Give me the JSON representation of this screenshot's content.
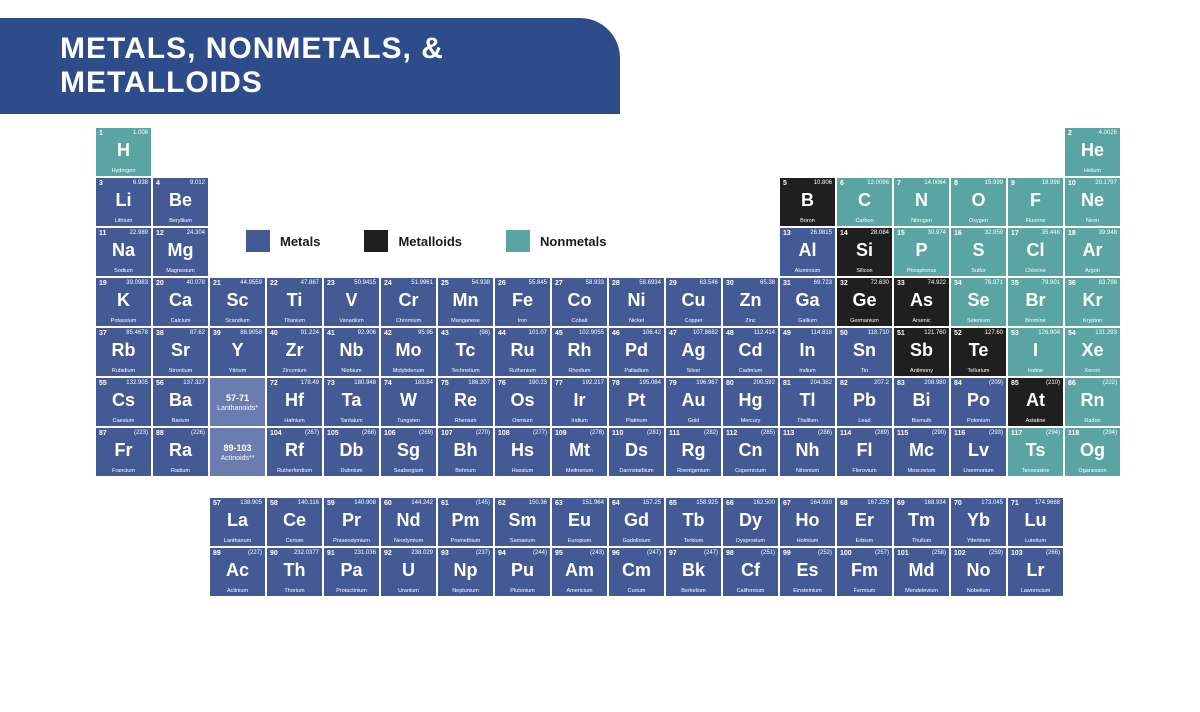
{
  "title": "METALS, NONMETALS, & METALLOIDS",
  "colors": {
    "metal": "#445a94",
    "metalloid": "#1f1f1f",
    "nonmetal": "#5ba4a4",
    "placeholder": "#6b7db0",
    "banner": "#2e4b8a",
    "background": "#ffffff"
  },
  "legend": [
    {
      "label": "Metals",
      "colorKey": "metal"
    },
    {
      "label": "Metalloids",
      "colorKey": "metalloid"
    },
    {
      "label": "Nonmetals",
      "colorKey": "nonmetal"
    }
  ],
  "placeholders": [
    {
      "row": 6,
      "col": 3,
      "range": "57-71",
      "label": "Lanthanoids*"
    },
    {
      "row": 7,
      "col": 3,
      "range": "89-103",
      "label": "Actinoids**"
    }
  ],
  "elements": [
    {
      "n": 1,
      "s": "H",
      "nm": "Hydrogen",
      "m": "1.008",
      "c": "nonmetal",
      "r": 1,
      "g": 1
    },
    {
      "n": 2,
      "s": "He",
      "nm": "Helium",
      "m": "4.0026",
      "c": "nonmetal",
      "r": 1,
      "g": 18
    },
    {
      "n": 3,
      "s": "Li",
      "nm": "Lithium",
      "m": "6.938",
      "c": "metal",
      "r": 2,
      "g": 1
    },
    {
      "n": 4,
      "s": "Be",
      "nm": "Beryllium",
      "m": "9.012",
      "c": "metal",
      "r": 2,
      "g": 2
    },
    {
      "n": 5,
      "s": "B",
      "nm": "Boron",
      "m": "10.806",
      "c": "metalloid",
      "r": 2,
      "g": 13
    },
    {
      "n": 6,
      "s": "C",
      "nm": "Carbon",
      "m": "12.0096",
      "c": "nonmetal",
      "r": 2,
      "g": 14
    },
    {
      "n": 7,
      "s": "N",
      "nm": "Nitrogen",
      "m": "14.0064",
      "c": "nonmetal",
      "r": 2,
      "g": 15
    },
    {
      "n": 8,
      "s": "O",
      "nm": "Oxygen",
      "m": "15.999",
      "c": "nonmetal",
      "r": 2,
      "g": 16
    },
    {
      "n": 9,
      "s": "F",
      "nm": "Fluorine",
      "m": "18.998",
      "c": "nonmetal",
      "r": 2,
      "g": 17
    },
    {
      "n": 10,
      "s": "Ne",
      "nm": "Neon",
      "m": "20.1797",
      "c": "nonmetal",
      "r": 2,
      "g": 18
    },
    {
      "n": 11,
      "s": "Na",
      "nm": "Sodium",
      "m": "22.989",
      "c": "metal",
      "r": 3,
      "g": 1
    },
    {
      "n": 12,
      "s": "Mg",
      "nm": "Magnesium",
      "m": "24.304",
      "c": "metal",
      "r": 3,
      "g": 2
    },
    {
      "n": 13,
      "s": "Al",
      "nm": "Aluminium",
      "m": "26.9815",
      "c": "metal",
      "r": 3,
      "g": 13
    },
    {
      "n": 14,
      "s": "Si",
      "nm": "Silicon",
      "m": "28.084",
      "c": "metalloid",
      "r": 3,
      "g": 14
    },
    {
      "n": 15,
      "s": "P",
      "nm": "Phosphorus",
      "m": "30.974",
      "c": "nonmetal",
      "r": 3,
      "g": 15
    },
    {
      "n": 16,
      "s": "S",
      "nm": "Sulfur",
      "m": "32.059",
      "c": "nonmetal",
      "r": 3,
      "g": 16
    },
    {
      "n": 17,
      "s": "Cl",
      "nm": "Chlorine",
      "m": "35.446",
      "c": "nonmetal",
      "r": 3,
      "g": 17
    },
    {
      "n": 18,
      "s": "Ar",
      "nm": "Argon",
      "m": "39.948",
      "c": "nonmetal",
      "r": 3,
      "g": 18
    },
    {
      "n": 19,
      "s": "K",
      "nm": "Potassium",
      "m": "39.0983",
      "c": "metal",
      "r": 4,
      "g": 1
    },
    {
      "n": 20,
      "s": "Ca",
      "nm": "Calcium",
      "m": "40.078",
      "c": "metal",
      "r": 4,
      "g": 2
    },
    {
      "n": 21,
      "s": "Sc",
      "nm": "Scandium",
      "m": "44.9559",
      "c": "metal",
      "r": 4,
      "g": 3
    },
    {
      "n": 22,
      "s": "Ti",
      "nm": "Titanium",
      "m": "47.867",
      "c": "metal",
      "r": 4,
      "g": 4
    },
    {
      "n": 23,
      "s": "V",
      "nm": "Vanadium",
      "m": "50.9415",
      "c": "metal",
      "r": 4,
      "g": 5
    },
    {
      "n": 24,
      "s": "Cr",
      "nm": "Chromium",
      "m": "51.9961",
      "c": "metal",
      "r": 4,
      "g": 6
    },
    {
      "n": 25,
      "s": "Mn",
      "nm": "Manganese",
      "m": "54.938",
      "c": "metal",
      "r": 4,
      "g": 7
    },
    {
      "n": 26,
      "s": "Fe",
      "nm": "Iron",
      "m": "55.845",
      "c": "metal",
      "r": 4,
      "g": 8
    },
    {
      "n": 27,
      "s": "Co",
      "nm": "Cobalt",
      "m": "58.933",
      "c": "metal",
      "r": 4,
      "g": 9
    },
    {
      "n": 28,
      "s": "Ni",
      "nm": "Nickel",
      "m": "58.6934",
      "c": "metal",
      "r": 4,
      "g": 10
    },
    {
      "n": 29,
      "s": "Cu",
      "nm": "Copper",
      "m": "63.546",
      "c": "metal",
      "r": 4,
      "g": 11
    },
    {
      "n": 30,
      "s": "Zn",
      "nm": "Zinc",
      "m": "65.38",
      "c": "metal",
      "r": 4,
      "g": 12
    },
    {
      "n": 31,
      "s": "Ga",
      "nm": "Gallium",
      "m": "69.723",
      "c": "metal",
      "r": 4,
      "g": 13
    },
    {
      "n": 32,
      "s": "Ge",
      "nm": "Germanium",
      "m": "72.630",
      "c": "metalloid",
      "r": 4,
      "g": 14
    },
    {
      "n": 33,
      "s": "As",
      "nm": "Arsenic",
      "m": "74.922",
      "c": "metalloid",
      "r": 4,
      "g": 15
    },
    {
      "n": 34,
      "s": "Se",
      "nm": "Selenium",
      "m": "78.971",
      "c": "nonmetal",
      "r": 4,
      "g": 16
    },
    {
      "n": 35,
      "s": "Br",
      "nm": "Bromine",
      "m": "79.901",
      "c": "nonmetal",
      "r": 4,
      "g": 17
    },
    {
      "n": 36,
      "s": "Kr",
      "nm": "Krypton",
      "m": "83.798",
      "c": "nonmetal",
      "r": 4,
      "g": 18
    },
    {
      "n": 37,
      "s": "Rb",
      "nm": "Rubidium",
      "m": "85.4678",
      "c": "metal",
      "r": 5,
      "g": 1
    },
    {
      "n": 38,
      "s": "Sr",
      "nm": "Strontium",
      "m": "87.62",
      "c": "metal",
      "r": 5,
      "g": 2
    },
    {
      "n": 39,
      "s": "Y",
      "nm": "Yttrium",
      "m": "88.9058",
      "c": "metal",
      "r": 5,
      "g": 3
    },
    {
      "n": 40,
      "s": "Zr",
      "nm": "Zirconium",
      "m": "91.224",
      "c": "metal",
      "r": 5,
      "g": 4
    },
    {
      "n": 41,
      "s": "Nb",
      "nm": "Niobium",
      "m": "92.906",
      "c": "metal",
      "r": 5,
      "g": 5
    },
    {
      "n": 42,
      "s": "Mo",
      "nm": "Molybdenum",
      "m": "95.95",
      "c": "metal",
      "r": 5,
      "g": 6
    },
    {
      "n": 43,
      "s": "Tc",
      "nm": "Technetium",
      "m": "(98)",
      "c": "metal",
      "r": 5,
      "g": 7
    },
    {
      "n": 44,
      "s": "Ru",
      "nm": "Ruthenium",
      "m": "101.07",
      "c": "metal",
      "r": 5,
      "g": 8
    },
    {
      "n": 45,
      "s": "Rh",
      "nm": "Rhodium",
      "m": "102.9055",
      "c": "metal",
      "r": 5,
      "g": 9
    },
    {
      "n": 46,
      "s": "Pd",
      "nm": "Palladium",
      "m": "106.42",
      "c": "metal",
      "r": 5,
      "g": 10
    },
    {
      "n": 47,
      "s": "Ag",
      "nm": "Silver",
      "m": "107.8682",
      "c": "metal",
      "r": 5,
      "g": 11
    },
    {
      "n": 48,
      "s": "Cd",
      "nm": "Cadmium",
      "m": "112.414",
      "c": "metal",
      "r": 5,
      "g": 12
    },
    {
      "n": 49,
      "s": "In",
      "nm": "Indium",
      "m": "114.818",
      "c": "metal",
      "r": 5,
      "g": 13
    },
    {
      "n": 50,
      "s": "Sn",
      "nm": "Tin",
      "m": "118.710",
      "c": "metal",
      "r": 5,
      "g": 14
    },
    {
      "n": 51,
      "s": "Sb",
      "nm": "Antimony",
      "m": "121.760",
      "c": "metalloid",
      "r": 5,
      "g": 15
    },
    {
      "n": 52,
      "s": "Te",
      "nm": "Tellurium",
      "m": "127.60",
      "c": "metalloid",
      "r": 5,
      "g": 16
    },
    {
      "n": 53,
      "s": "I",
      "nm": "Iodine",
      "m": "126.904",
      "c": "nonmetal",
      "r": 5,
      "g": 17
    },
    {
      "n": 54,
      "s": "Xe",
      "nm": "Xenon",
      "m": "131.293",
      "c": "nonmetal",
      "r": 5,
      "g": 18
    },
    {
      "n": 55,
      "s": "Cs",
      "nm": "Caesium",
      "m": "132.905",
      "c": "metal",
      "r": 6,
      "g": 1
    },
    {
      "n": 56,
      "s": "Ba",
      "nm": "Barium",
      "m": "137.327",
      "c": "metal",
      "r": 6,
      "g": 2
    },
    {
      "n": 72,
      "s": "Hf",
      "nm": "Hafnium",
      "m": "178.49",
      "c": "metal",
      "r": 6,
      "g": 4
    },
    {
      "n": 73,
      "s": "Ta",
      "nm": "Tantalum",
      "m": "180.948",
      "c": "metal",
      "r": 6,
      "g": 5
    },
    {
      "n": 74,
      "s": "W",
      "nm": "Tungsten",
      "m": "183.84",
      "c": "metal",
      "r": 6,
      "g": 6
    },
    {
      "n": 75,
      "s": "Re",
      "nm": "Rhenium",
      "m": "186.207",
      "c": "metal",
      "r": 6,
      "g": 7
    },
    {
      "n": 76,
      "s": "Os",
      "nm": "Osmium",
      "m": "190.23",
      "c": "metal",
      "r": 6,
      "g": 8
    },
    {
      "n": 77,
      "s": "Ir",
      "nm": "Iridium",
      "m": "192.217",
      "c": "metal",
      "r": 6,
      "g": 9
    },
    {
      "n": 78,
      "s": "Pt",
      "nm": "Platinum",
      "m": "195.084",
      "c": "metal",
      "r": 6,
      "g": 10
    },
    {
      "n": 79,
      "s": "Au",
      "nm": "Gold",
      "m": "196.967",
      "c": "metal",
      "r": 6,
      "g": 11
    },
    {
      "n": 80,
      "s": "Hg",
      "nm": "Mercury",
      "m": "200.592",
      "c": "metal",
      "r": 6,
      "g": 12
    },
    {
      "n": 81,
      "s": "Tl",
      "nm": "Thallium",
      "m": "204.382",
      "c": "metal",
      "r": 6,
      "g": 13
    },
    {
      "n": 82,
      "s": "Pb",
      "nm": "Lead",
      "m": "207.2",
      "c": "metal",
      "r": 6,
      "g": 14
    },
    {
      "n": 83,
      "s": "Bi",
      "nm": "Bismuth",
      "m": "208.980",
      "c": "metal",
      "r": 6,
      "g": 15
    },
    {
      "n": 84,
      "s": "Po",
      "nm": "Polonium",
      "m": "(209)",
      "c": "metal",
      "r": 6,
      "g": 16
    },
    {
      "n": 85,
      "s": "At",
      "nm": "Astatine",
      "m": "(210)",
      "c": "metalloid",
      "r": 6,
      "g": 17
    },
    {
      "n": 86,
      "s": "Rn",
      "nm": "Radon",
      "m": "(222)",
      "c": "nonmetal",
      "r": 6,
      "g": 18
    },
    {
      "n": 87,
      "s": "Fr",
      "nm": "Francium",
      "m": "(223)",
      "c": "metal",
      "r": 7,
      "g": 1
    },
    {
      "n": 88,
      "s": "Ra",
      "nm": "Radium",
      "m": "(226)",
      "c": "metal",
      "r": 7,
      "g": 2
    },
    {
      "n": 104,
      "s": "Rf",
      "nm": "Rutherfordium",
      "m": "(267)",
      "c": "metal",
      "r": 7,
      "g": 4
    },
    {
      "n": 105,
      "s": "Db",
      "nm": "Dubnium",
      "m": "(268)",
      "c": "metal",
      "r": 7,
      "g": 5
    },
    {
      "n": 106,
      "s": "Sg",
      "nm": "Seaborgium",
      "m": "(269)",
      "c": "metal",
      "r": 7,
      "g": 6
    },
    {
      "n": 107,
      "s": "Bh",
      "nm": "Bohrium",
      "m": "(270)",
      "c": "metal",
      "r": 7,
      "g": 7
    },
    {
      "n": 108,
      "s": "Hs",
      "nm": "Hassium",
      "m": "(277)",
      "c": "metal",
      "r": 7,
      "g": 8
    },
    {
      "n": 109,
      "s": "Mt",
      "nm": "Meitnerium",
      "m": "(278)",
      "c": "metal",
      "r": 7,
      "g": 9
    },
    {
      "n": 110,
      "s": "Ds",
      "nm": "Darmstadtium",
      "m": "(281)",
      "c": "metal",
      "r": 7,
      "g": 10
    },
    {
      "n": 111,
      "s": "Rg",
      "nm": "Roentgenium",
      "m": "(282)",
      "c": "metal",
      "r": 7,
      "g": 11
    },
    {
      "n": 112,
      "s": "Cn",
      "nm": "Copernicium",
      "m": "(285)",
      "c": "metal",
      "r": 7,
      "g": 12
    },
    {
      "n": 113,
      "s": "Nh",
      "nm": "Nihonium",
      "m": "(286)",
      "c": "metal",
      "r": 7,
      "g": 13
    },
    {
      "n": 114,
      "s": "Fl",
      "nm": "Flerovium",
      "m": "(289)",
      "c": "metal",
      "r": 7,
      "g": 14
    },
    {
      "n": 115,
      "s": "Mc",
      "nm": "Moscovium",
      "m": "(290)",
      "c": "metal",
      "r": 7,
      "g": 15
    },
    {
      "n": 116,
      "s": "Lv",
      "nm": "Livermorium",
      "m": "(293)",
      "c": "metal",
      "r": 7,
      "g": 16
    },
    {
      "n": 117,
      "s": "Ts",
      "nm": "Tennessine",
      "m": "(294)",
      "c": "nonmetal",
      "r": 7,
      "g": 17
    },
    {
      "n": 118,
      "s": "Og",
      "nm": "Oganesson",
      "m": "(294)",
      "c": "nonmetal",
      "r": 7,
      "g": 18
    }
  ],
  "fblock": [
    {
      "n": 57,
      "s": "La",
      "nm": "Lanthanum",
      "m": "138.905",
      "c": "metal",
      "r": 1,
      "g": 1
    },
    {
      "n": 58,
      "s": "Ce",
      "nm": "Cerium",
      "m": "140.116",
      "c": "metal",
      "r": 1,
      "g": 2
    },
    {
      "n": 59,
      "s": "Pr",
      "nm": "Praseodymium",
      "m": "140.908",
      "c": "metal",
      "r": 1,
      "g": 3
    },
    {
      "n": 60,
      "s": "Nd",
      "nm": "Neodymium",
      "m": "144.242",
      "c": "metal",
      "r": 1,
      "g": 4
    },
    {
      "n": 61,
      "s": "Pm",
      "nm": "Promethium",
      "m": "(145)",
      "c": "metal",
      "r": 1,
      "g": 5
    },
    {
      "n": 62,
      "s": "Sm",
      "nm": "Samarium",
      "m": "150.36",
      "c": "metal",
      "r": 1,
      "g": 6
    },
    {
      "n": 63,
      "s": "Eu",
      "nm": "Europium",
      "m": "151.964",
      "c": "metal",
      "r": 1,
      "g": 7
    },
    {
      "n": 64,
      "s": "Gd",
      "nm": "Gadolinium",
      "m": "157.25",
      "c": "metal",
      "r": 1,
      "g": 8
    },
    {
      "n": 65,
      "s": "Tb",
      "nm": "Terbium",
      "m": "158.925",
      "c": "metal",
      "r": 1,
      "g": 9
    },
    {
      "n": 66,
      "s": "Dy",
      "nm": "Dysprosium",
      "m": "162.500",
      "c": "metal",
      "r": 1,
      "g": 10
    },
    {
      "n": 67,
      "s": "Ho",
      "nm": "Holmium",
      "m": "164.930",
      "c": "metal",
      "r": 1,
      "g": 11
    },
    {
      "n": 68,
      "s": "Er",
      "nm": "Erbium",
      "m": "167.259",
      "c": "metal",
      "r": 1,
      "g": 12
    },
    {
      "n": 69,
      "s": "Tm",
      "nm": "Thulium",
      "m": "168.934",
      "c": "metal",
      "r": 1,
      "g": 13
    },
    {
      "n": 70,
      "s": "Yb",
      "nm": "Ytterbium",
      "m": "173.045",
      "c": "metal",
      "r": 1,
      "g": 14
    },
    {
      "n": 71,
      "s": "Lu",
      "nm": "Lutetium",
      "m": "174.9668",
      "c": "metal",
      "r": 1,
      "g": 15
    },
    {
      "n": 89,
      "s": "Ac",
      "nm": "Actinium",
      "m": "(227)",
      "c": "metal",
      "r": 2,
      "g": 1
    },
    {
      "n": 90,
      "s": "Th",
      "nm": "Thorium",
      "m": "232.0377",
      "c": "metal",
      "r": 2,
      "g": 2
    },
    {
      "n": 91,
      "s": "Pa",
      "nm": "Protactinium",
      "m": "231.036",
      "c": "metal",
      "r": 2,
      "g": 3
    },
    {
      "n": 92,
      "s": "U",
      "nm": "Uranium",
      "m": "238.029",
      "c": "metal",
      "r": 2,
      "g": 4
    },
    {
      "n": 93,
      "s": "Np",
      "nm": "Neptunium",
      "m": "(237)",
      "c": "metal",
      "r": 2,
      "g": 5
    },
    {
      "n": 94,
      "s": "Pu",
      "nm": "Plutonium",
      "m": "(244)",
      "c": "metal",
      "r": 2,
      "g": 6
    },
    {
      "n": 95,
      "s": "Am",
      "nm": "Americium",
      "m": "(243)",
      "c": "metal",
      "r": 2,
      "g": 7
    },
    {
      "n": 96,
      "s": "Cm",
      "nm": "Curium",
      "m": "(247)",
      "c": "metal",
      "r": 2,
      "g": 8
    },
    {
      "n": 97,
      "s": "Bk",
      "nm": "Berkelium",
      "m": "(247)",
      "c": "metal",
      "r": 2,
      "g": 9
    },
    {
      "n": 98,
      "s": "Cf",
      "nm": "Californium",
      "m": "(251)",
      "c": "metal",
      "r": 2,
      "g": 10
    },
    {
      "n": 99,
      "s": "Es",
      "nm": "Einsteinium",
      "m": "(252)",
      "c": "metal",
      "r": 2,
      "g": 11
    },
    {
      "n": 100,
      "s": "Fm",
      "nm": "Fermium",
      "m": "(257)",
      "c": "metal",
      "r": 2,
      "g": 12
    },
    {
      "n": 101,
      "s": "Md",
      "nm": "Mendelevium",
      "m": "(258)",
      "c": "metal",
      "r": 2,
      "g": 13
    },
    {
      "n": 102,
      "s": "No",
      "nm": "Nobelium",
      "m": "(259)",
      "c": "metal",
      "r": 2,
      "g": 14
    },
    {
      "n": 103,
      "s": "Lr",
      "nm": "Lawrencium",
      "m": "(266)",
      "c": "metal",
      "r": 2,
      "g": 15
    }
  ]
}
